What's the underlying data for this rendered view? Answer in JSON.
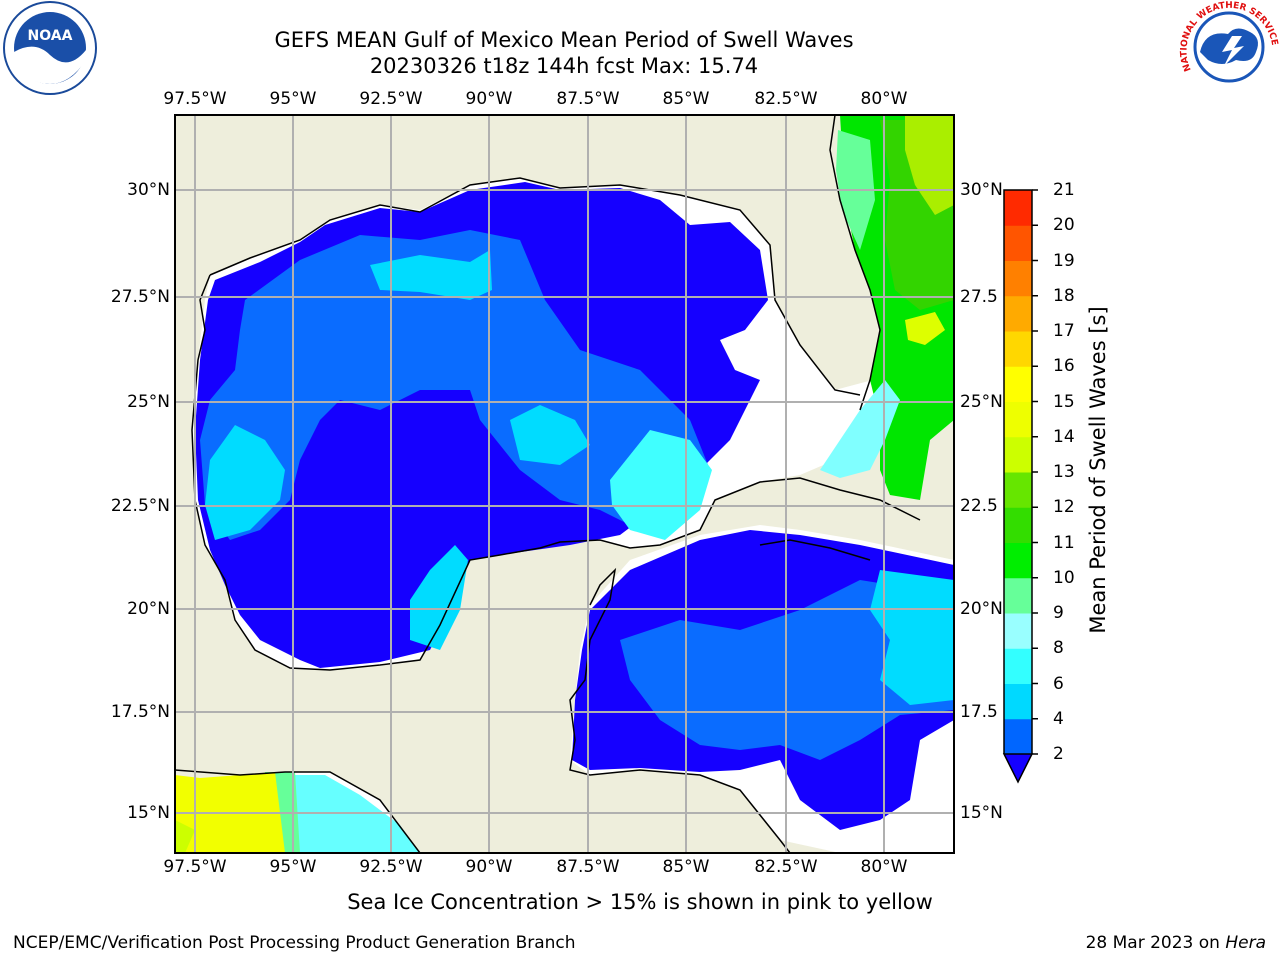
{
  "title_line1": "GEFS MEAN Gulf of Mexico Mean Period of Swell Waves",
  "title_line2": "20230326 t18z 144h fcst   Max: 15.74",
  "lon_labels": [
    "97.5°W",
    "95°W",
    "92.5°W",
    "90°W",
    "87.5°W",
    "85°W",
    "82.5°W",
    "80°W"
  ],
  "lat_labels_left": [
    "30°N",
    "27.5°N",
    "25°N",
    "22.5°N",
    "20°N",
    "17.5°N",
    "15°N"
  ],
  "lat_labels_right": [
    "30°N",
    "27.5",
    "25°N",
    "22.5",
    "20°N",
    "17.5",
    "15°N"
  ],
  "colorbar": {
    "label": "Mean Period of Swell Waves [s]",
    "ticks": [
      "2",
      "4",
      "6",
      "8",
      "9",
      "10",
      "11",
      "12",
      "13",
      "14",
      "15",
      "16",
      "17",
      "18",
      "19",
      "20",
      "21"
    ],
    "colors": [
      "#0066ff",
      "#00d9ff",
      "#33ffff",
      "#99ffff",
      "#66ff99",
      "#00ee00",
      "#33dd00",
      "#66e600",
      "#ccff00",
      "#eeff00",
      "#ffff00",
      "#ffd700",
      "#ffaa00",
      "#ff8000",
      "#ff5500",
      "#ff2a00"
    ],
    "under_color": "#1500ff"
  },
  "note": "Sea Ice Concentration > 15% is shown in pink to yellow",
  "credit": "NCEP/EMC/Verification Post Processing Product Generation Branch",
  "date": "28 Mar 2023 on ",
  "machine": "Hera",
  "logos": {
    "noaa": "NOAA",
    "nws": "NATIONAL WEATHER SERVICE"
  },
  "colors": {
    "land": "#eeeedc",
    "grid": "#b0b0b0",
    "coast": "#000000"
  }
}
